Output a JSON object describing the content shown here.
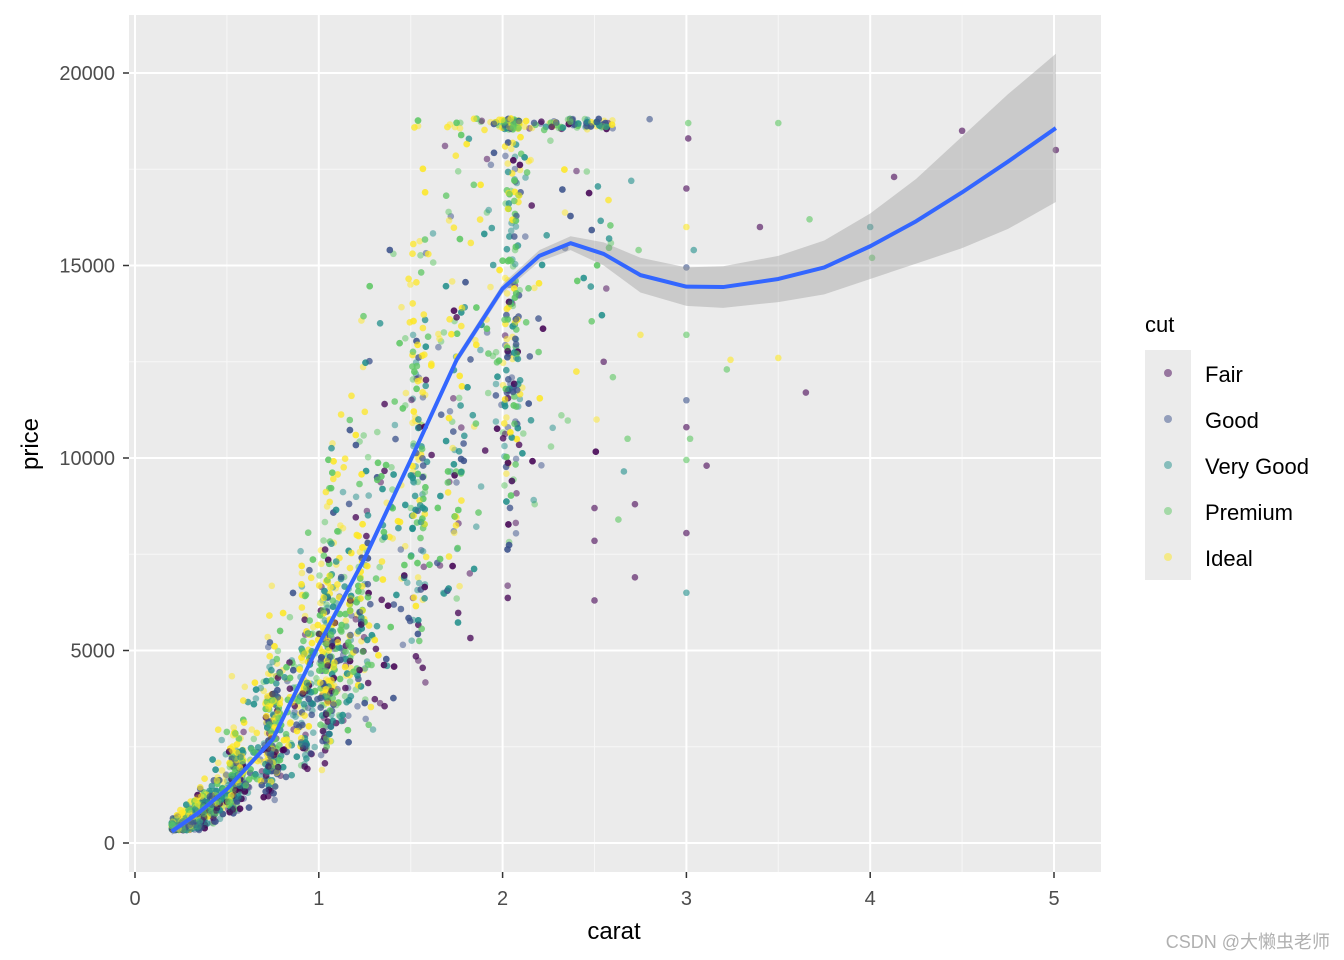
{
  "chart_data": {
    "type": "scatter",
    "title": "",
    "xlabel": "carat",
    "ylabel": "price",
    "xlim": [
      -0.04,
      5.26
    ],
    "ylim": [
      -1200,
      21050
    ],
    "xticks": [
      0,
      1,
      2,
      3,
      4,
      5
    ],
    "yticks": [
      0,
      5000,
      10000,
      15000,
      20000
    ],
    "xtick_labels": [
      "0",
      "1",
      "2",
      "3",
      "4",
      "5"
    ],
    "ytick_labels": [
      "0",
      "5000",
      "10000",
      "15000",
      "20000"
    ],
    "grid": true,
    "point_alpha": 0.5,
    "legend": {
      "title": "cut",
      "placement": "right",
      "entries": [
        {
          "label": "Fair",
          "color": "#440154"
        },
        {
          "label": "Good",
          "color": "#3B528B"
        },
        {
          "label": "Very Good",
          "color": "#21908C"
        },
        {
          "label": "Premium",
          "color": "#5DC863"
        },
        {
          "label": "Ideal",
          "color": "#FDE725"
        }
      ]
    },
    "dense_cloud": {
      "note_clusters_carat": [
        0.3,
        0.4,
        0.5,
        0.7,
        0.9,
        1.0,
        1.2,
        1.5,
        1.7,
        2.0
      ],
      "price_cap": 18820
    },
    "sparse_points": [
      {
        "carat": 3.01,
        "price": 18700,
        "cut": "Premium"
      },
      {
        "carat": 3.01,
        "price": 18300,
        "cut": "Fair"
      },
      {
        "carat": 3.0,
        "price": 17000,
        "cut": "Fair"
      },
      {
        "carat": 3.4,
        "price": 16000,
        "cut": "Fair"
      },
      {
        "carat": 3.5,
        "price": 18700,
        "cut": "Premium"
      },
      {
        "carat": 3.65,
        "price": 11700,
        "cut": "Fair"
      },
      {
        "carat": 3.67,
        "price": 16200,
        "cut": "Premium"
      },
      {
        "carat": 4.01,
        "price": 15200,
        "cut": "Premium"
      },
      {
        "carat": 4.0,
        "price": 16000,
        "cut": "Very Good"
      },
      {
        "carat": 4.13,
        "price": 17300,
        "cut": "Fair"
      },
      {
        "carat": 4.5,
        "price": 18500,
        "cut": "Fair"
      },
      {
        "carat": 5.01,
        "price": 18000,
        "cut": "Fair"
      },
      {
        "carat": 3.22,
        "price": 12300,
        "cut": "Premium"
      },
      {
        "carat": 3.24,
        "price": 12550,
        "cut": "Ideal"
      },
      {
        "carat": 3.5,
        "price": 12600,
        "cut": "Ideal"
      },
      {
        "carat": 3.11,
        "price": 9800,
        "cut": "Fair"
      },
      {
        "carat": 3.0,
        "price": 8050,
        "cut": "Fair"
      },
      {
        "carat": 3.0,
        "price": 6500,
        "cut": "Very Good"
      },
      {
        "carat": 2.72,
        "price": 6900,
        "cut": "Fair"
      },
      {
        "carat": 3.04,
        "price": 15400,
        "cut": "Very Good"
      },
      {
        "carat": 3.0,
        "price": 14950,
        "cut": "Good"
      },
      {
        "carat": 3.0,
        "price": 11500,
        "cut": "Good"
      },
      {
        "carat": 3.0,
        "price": 10800,
        "cut": "Fair"
      },
      {
        "carat": 3.02,
        "price": 10500,
        "cut": "Premium"
      },
      {
        "carat": 3.0,
        "price": 9950,
        "cut": "Premium"
      },
      {
        "carat": 3.0,
        "price": 13200,
        "cut": "Premium"
      },
      {
        "carat": 3.0,
        "price": 16000,
        "cut": "Ideal"
      },
      {
        "carat": 2.8,
        "price": 18800,
        "cut": "Good"
      },
      {
        "carat": 2.74,
        "price": 15400,
        "cut": "Premium"
      },
      {
        "carat": 2.75,
        "price": 13200,
        "cut": "Ideal"
      },
      {
        "carat": 2.66,
        "price": 9650,
        "cut": "Very Good"
      },
      {
        "carat": 2.63,
        "price": 8400,
        "cut": "Premium"
      },
      {
        "carat": 2.72,
        "price": 8800,
        "cut": "Fair"
      },
      {
        "carat": 2.5,
        "price": 6300,
        "cut": "Fair"
      },
      {
        "carat": 2.5,
        "price": 7850,
        "cut": "Fair"
      },
      {
        "carat": 2.5,
        "price": 8700,
        "cut": "Fair"
      },
      {
        "carat": 2.68,
        "price": 10500,
        "cut": "Premium"
      },
      {
        "carat": 2.6,
        "price": 12100,
        "cut": "Premium"
      },
      {
        "carat": 2.55,
        "price": 12500,
        "cut": "Fair"
      },
      {
        "carat": 2.7,
        "price": 17200,
        "cut": "Very Good"
      }
    ],
    "smooth": {
      "color": "#3366FF",
      "band_color": "#999999",
      "x": [
        0.2,
        0.35,
        0.5,
        0.75,
        1.0,
        1.25,
        1.5,
        1.75,
        2.0,
        2.2,
        2.37,
        2.55,
        2.75,
        3.0,
        3.2,
        3.5,
        3.75,
        4.0,
        4.25,
        4.5,
        4.75,
        5.01
      ],
      "y": [
        300,
        800,
        1400,
        2700,
        5150,
        7400,
        9950,
        12550,
        14400,
        15250,
        15580,
        15300,
        14750,
        14450,
        14440,
        14650,
        14950,
        15500,
        16150,
        16900,
        17700,
        18570
      ],
      "lower": [
        200,
        720,
        1330,
        2640,
        5080,
        7320,
        9860,
        12440,
        14280,
        15100,
        15400,
        15000,
        14300,
        13950,
        13900,
        14050,
        14250,
        14650,
        15050,
        15450,
        15950,
        16650
      ],
      "upper": [
        400,
        880,
        1470,
        2760,
        5220,
        7480,
        10040,
        12660,
        14520,
        15400,
        15760,
        15600,
        15200,
        14950,
        14980,
        15250,
        15650,
        16350,
        17250,
        18350,
        19450,
        20500
      ]
    }
  },
  "watermark": "CSDN @大懒虫老师"
}
